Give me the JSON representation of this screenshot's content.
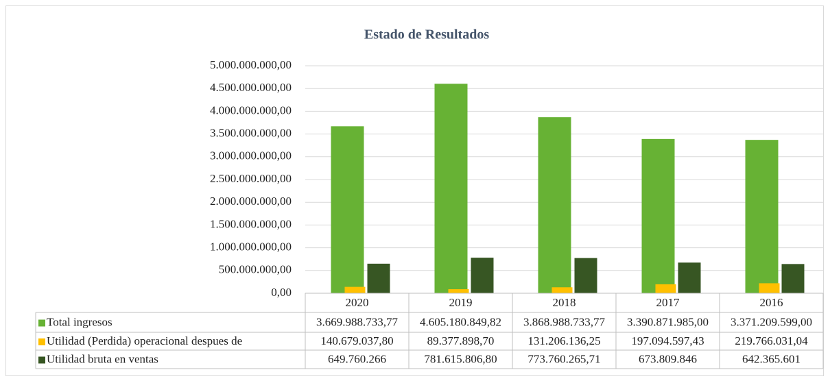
{
  "chart_data": {
    "type": "bar",
    "title": "Estado de Resultados",
    "categories": [
      "2020",
      "2019",
      "2018",
      "2017",
      "2016"
    ],
    "series": [
      {
        "name": "Total ingresos",
        "color": "#67b234",
        "values": [
          3669988733.77,
          4605180849.82,
          3868988733.77,
          3390871985.0,
          3371209599.0
        ],
        "value_labels": [
          "3.669.988.733,77",
          "4.605.180.849,82",
          "3.868.988.733,77",
          "3.390.871.985,00",
          "3.371.209.599,00"
        ]
      },
      {
        "name": "Utilidad (Perdida) operacional despues de",
        "color": "#ffc000",
        "values": [
          140679037.8,
          89377898.7,
          131206136.25,
          197094597.43,
          219766031.04
        ],
        "value_labels": [
          "140.679.037,80",
          "89.377.898,70",
          "131.206.136,25",
          "197.094.597,43",
          "219.766.031,04"
        ]
      },
      {
        "name": "Utilidad bruta en ventas",
        "color": "#375623",
        "values": [
          649760266,
          781615806.8,
          773760265.71,
          673809846,
          642365601
        ],
        "value_labels": [
          "649.760.266",
          "781.615.806,80",
          "773.760.265,71",
          "673.809.846",
          "642.365.601"
        ]
      }
    ],
    "ylim": [
      0,
      5000000000
    ],
    "yticks": [
      {
        "value": 0,
        "label": "0,00"
      },
      {
        "value": 500000000,
        "label": "500.000.000,00"
      },
      {
        "value": 1000000000,
        "label": "1.000.000.000,00"
      },
      {
        "value": 1500000000,
        "label": "1.500.000.000,00"
      },
      {
        "value": 2000000000,
        "label": "2.000.000.000,00"
      },
      {
        "value": 2500000000,
        "label": "2.500.000.000,00"
      },
      {
        "value": 3000000000,
        "label": "3.000.000.000,00"
      },
      {
        "value": 3500000000,
        "label": "3.500.000.000,00"
      },
      {
        "value": 4000000000,
        "label": "4.000.000.000,00"
      },
      {
        "value": 4500000000,
        "label": "4.500.000.000,00"
      },
      {
        "value": 5000000000,
        "label": "5.000.000.000,00"
      }
    ],
    "grid": true
  }
}
